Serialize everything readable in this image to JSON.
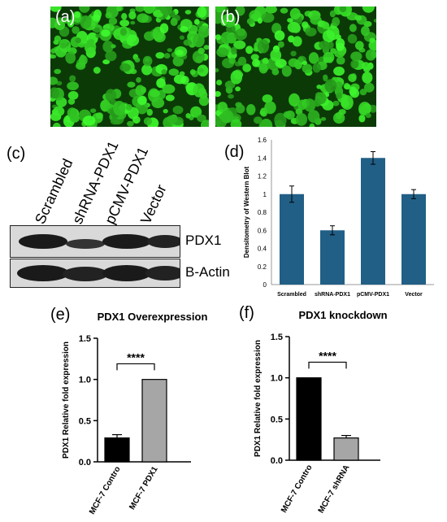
{
  "panels": {
    "a": "(a)",
    "b": "(b)",
    "c": "(c)",
    "d": "(d)",
    "e": "(e)",
    "f": "(f)"
  },
  "blot": {
    "lanes": [
      "Scrambled",
      "shRNA-PDX1",
      "pCMV-PDX1",
      "Vector"
    ],
    "rows": [
      "PDX1",
      "B-Actin"
    ]
  },
  "colors": {
    "micro_bg": "#0b3a07",
    "micro_cell": "#39d12a",
    "bar_d": "#215f86",
    "bar_black": "#000000",
    "bar_gray": "#a6a6a6"
  },
  "chart_data": [
    {
      "panel": "d",
      "type": "bar",
      "title": "",
      "xlabel": "",
      "ylabel": "Densitometry of Western Blot",
      "categories": [
        "Scrambled",
        "shRNA-PDX1",
        "pCMV-PDX1",
        "Vector"
      ],
      "values": [
        1.0,
        0.6,
        1.4,
        1.0
      ],
      "errors": [
        0.09,
        0.05,
        0.07,
        0.05
      ],
      "ylim": [
        0,
        1.6
      ],
      "yticks": [
        "0",
        "0.2",
        "0.4",
        "0.6",
        "0.8",
        "1",
        "1.2",
        "1.4",
        "1.6"
      ],
      "grid": false
    },
    {
      "panel": "e",
      "type": "bar",
      "title": "PDX1 Overexpression",
      "ylabel": "PDX1 Relative fold expression",
      "categories": [
        "MCF-7 Contro",
        "MCF-7 PDX1"
      ],
      "values": [
        0.29,
        1.0
      ],
      "errors": [
        0.04,
        0.0
      ],
      "colors": [
        "#000000",
        "#a6a6a6"
      ],
      "ylim": [
        0,
        1.5
      ],
      "yticks": [
        "0.0",
        "0.5",
        "1.0",
        "1.5"
      ],
      "significance": "****"
    },
    {
      "panel": "f",
      "type": "bar",
      "title": "PDX1 knockdown",
      "ylabel": "PDX1 Relative fold expression",
      "categories": [
        "MCF-7 Contro",
        "MCF-7 shRNA"
      ],
      "values": [
        1.0,
        0.27
      ],
      "errors": [
        0.0,
        0.03
      ],
      "colors": [
        "#000000",
        "#a6a6a6"
      ],
      "ylim": [
        0,
        1.5
      ],
      "yticks": [
        "0.0",
        "0.5",
        "1.0",
        "1.5"
      ],
      "significance": "****"
    }
  ]
}
